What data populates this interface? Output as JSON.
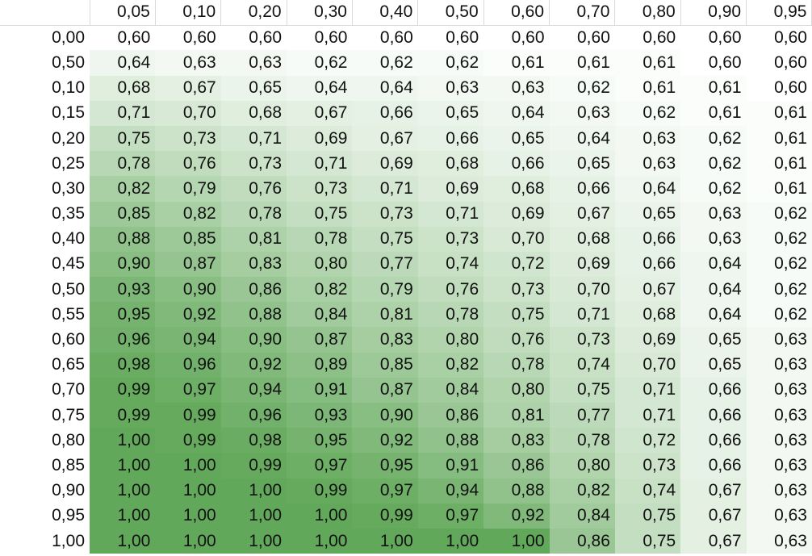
{
  "palette": {
    "low": "#ffffff",
    "high": "#62a85a"
  },
  "columns": [
    "0,05",
    "0,10",
    "0,20",
    "0,30",
    "0,40",
    "0,50",
    "0,60",
    "0,70",
    "0,80",
    "0,90",
    "0,95"
  ],
  "rows": [
    {
      "label": "0,00",
      "values": [
        "0,60",
        "0,60",
        "0,60",
        "0,60",
        "0,60",
        "0,60",
        "0,60",
        "0,60",
        "0,60",
        "0,60",
        "0,60"
      ]
    },
    {
      "label": "0,50",
      "values": [
        "0,64",
        "0,63",
        "0,63",
        "0,62",
        "0,62",
        "0,62",
        "0,61",
        "0,61",
        "0,61",
        "0,60",
        "0,60"
      ]
    },
    {
      "label": "0,10",
      "values": [
        "0,68",
        "0,67",
        "0,65",
        "0,64",
        "0,64",
        "0,63",
        "0,63",
        "0,62",
        "0,61",
        "0,61",
        "0,60"
      ]
    },
    {
      "label": "0,15",
      "values": [
        "0,71",
        "0,70",
        "0,68",
        "0,67",
        "0,66",
        "0,65",
        "0,64",
        "0,63",
        "0,62",
        "0,61",
        "0,61"
      ]
    },
    {
      "label": "0,20",
      "values": [
        "0,75",
        "0,73",
        "0,71",
        "0,69",
        "0,67",
        "0,66",
        "0,65",
        "0,64",
        "0,63",
        "0,62",
        "0,61"
      ]
    },
    {
      "label": "0,25",
      "values": [
        "0,78",
        "0,76",
        "0,73",
        "0,71",
        "0,69",
        "0,68",
        "0,66",
        "0,65",
        "0,63",
        "0,62",
        "0,61"
      ]
    },
    {
      "label": "0,30",
      "values": [
        "0,82",
        "0,79",
        "0,76",
        "0,73",
        "0,71",
        "0,69",
        "0,68",
        "0,66",
        "0,64",
        "0,62",
        "0,61"
      ]
    },
    {
      "label": "0,35",
      "values": [
        "0,85",
        "0,82",
        "0,78",
        "0,75",
        "0,73",
        "0,71",
        "0,69",
        "0,67",
        "0,65",
        "0,63",
        "0,62"
      ]
    },
    {
      "label": "0,40",
      "values": [
        "0,88",
        "0,85",
        "0,81",
        "0,78",
        "0,75",
        "0,73",
        "0,70",
        "0,68",
        "0,66",
        "0,63",
        "0,62"
      ]
    },
    {
      "label": "0,45",
      "values": [
        "0,90",
        "0,87",
        "0,83",
        "0,80",
        "0,77",
        "0,74",
        "0,72",
        "0,69",
        "0,66",
        "0,64",
        "0,62"
      ]
    },
    {
      "label": "0,50",
      "values": [
        "0,93",
        "0,90",
        "0,86",
        "0,82",
        "0,79",
        "0,76",
        "0,73",
        "0,70",
        "0,67",
        "0,64",
        "0,62"
      ]
    },
    {
      "label": "0,55",
      "values": [
        "0,95",
        "0,92",
        "0,88",
        "0,84",
        "0,81",
        "0,78",
        "0,75",
        "0,71",
        "0,68",
        "0,64",
        "0,62"
      ]
    },
    {
      "label": "0,60",
      "values": [
        "0,96",
        "0,94",
        "0,90",
        "0,87",
        "0,83",
        "0,80",
        "0,76",
        "0,73",
        "0,69",
        "0,65",
        "0,63"
      ]
    },
    {
      "label": "0,65",
      "values": [
        "0,98",
        "0,96",
        "0,92",
        "0,89",
        "0,85",
        "0,82",
        "0,78",
        "0,74",
        "0,70",
        "0,65",
        "0,63"
      ]
    },
    {
      "label": "0,70",
      "values": [
        "0,99",
        "0,97",
        "0,94",
        "0,91",
        "0,87",
        "0,84",
        "0,80",
        "0,75",
        "0,71",
        "0,66",
        "0,63"
      ]
    },
    {
      "label": "0,75",
      "values": [
        "0,99",
        "0,99",
        "0,96",
        "0,93",
        "0,90",
        "0,86",
        "0,81",
        "0,77",
        "0,71",
        "0,66",
        "0,63"
      ]
    },
    {
      "label": "0,80",
      "values": [
        "1,00",
        "0,99",
        "0,98",
        "0,95",
        "0,92",
        "0,88",
        "0,83",
        "0,78",
        "0,72",
        "0,66",
        "0,63"
      ]
    },
    {
      "label": "0,85",
      "values": [
        "1,00",
        "1,00",
        "0,99",
        "0,97",
        "0,95",
        "0,91",
        "0,86",
        "0,80",
        "0,73",
        "0,66",
        "0,63"
      ]
    },
    {
      "label": "0,90",
      "values": [
        "1,00",
        "1,00",
        "1,00",
        "0,99",
        "0,97",
        "0,94",
        "0,88",
        "0,82",
        "0,74",
        "0,67",
        "0,63"
      ]
    },
    {
      "label": "0,95",
      "values": [
        "1,00",
        "1,00",
        "1,00",
        "1,00",
        "0,99",
        "0,97",
        "0,92",
        "0,84",
        "0,75",
        "0,67",
        "0,63"
      ]
    },
    {
      "label": "1,00",
      "values": [
        "1,00",
        "1,00",
        "1,00",
        "1,00",
        "1,00",
        "1,00",
        "1,00",
        "0,86",
        "0,75",
        "0,67",
        "0,63"
      ]
    }
  ]
}
